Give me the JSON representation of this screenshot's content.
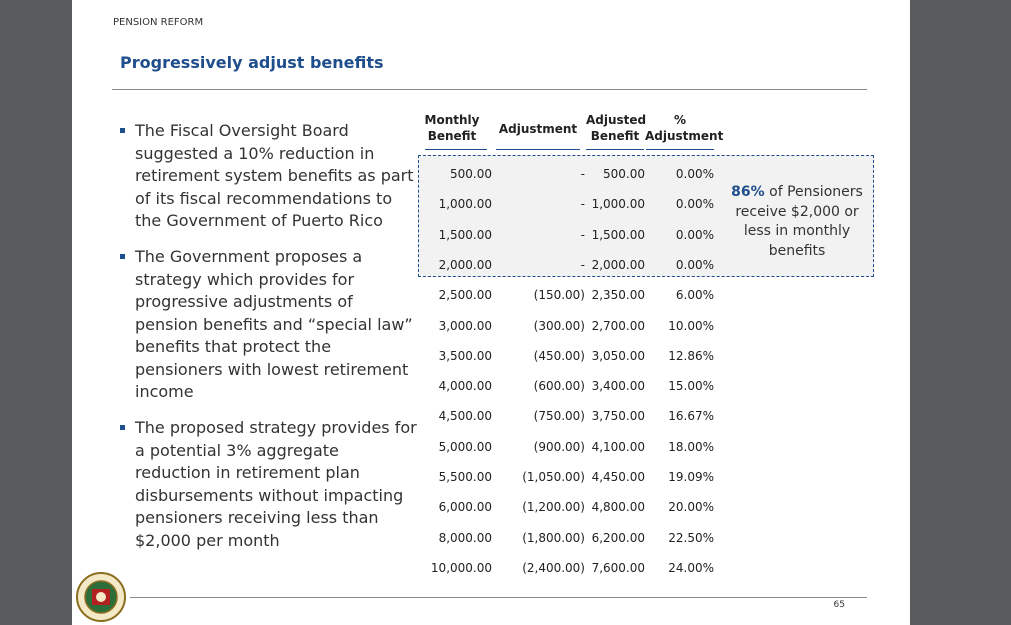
{
  "header": {
    "section": "PENSION REFORM",
    "title": "Progressively adjust benefits"
  },
  "bullets": [
    "The Fiscal Oversight Board suggested a 10% reduction in retirement system benefits as part of its fiscal recommendations to the Government of Puerto Rico",
    "The Government proposes a strategy which provides for progressive adjustments of pension benefits and “special law” benefits that protect the pensioners with lowest retirement income",
    "The proposed strategy provides for a potential 3% aggregate reduction in retirement plan disbursements without impacting pensioners receiving less than $2,000 per month"
  ],
  "table": {
    "columns": [
      "Monthly Benefit",
      "Adjustment",
      "Adjusted Benefit",
      "% Adjustment"
    ],
    "rows": [
      [
        "500.00",
        "-",
        "500.00",
        "0.00%"
      ],
      [
        "1,000.00",
        "-",
        "1,000.00",
        "0.00%"
      ],
      [
        "1,500.00",
        "-",
        "1,500.00",
        "0.00%"
      ],
      [
        "2,000.00",
        "-",
        "2,000.00",
        "0.00%"
      ],
      [
        "2,500.00",
        "(150.00)",
        "2,350.00",
        "6.00%"
      ],
      [
        "3,000.00",
        "(300.00)",
        "2,700.00",
        "10.00%"
      ],
      [
        "3,500.00",
        "(450.00)",
        "3,050.00",
        "12.86%"
      ],
      [
        "4,000.00",
        "(600.00)",
        "3,400.00",
        "15.00%"
      ],
      [
        "4,500.00",
        "(750.00)",
        "3,750.00",
        "16.67%"
      ],
      [
        "5,000.00",
        "(900.00)",
        "4,100.00",
        "18.00%"
      ],
      [
        "5,500.00",
        "(1,050.00)",
        "4,450.00",
        "19.09%"
      ],
      [
        "6,000.00",
        "(1,200.00)",
        "4,800.00",
        "20.00%"
      ],
      [
        "8,000.00",
        "(1,800.00)",
        "6,200.00",
        "22.50%"
      ],
      [
        "10,000.00",
        "(2,400.00)",
        "7,600.00",
        "24.00%"
      ]
    ]
  },
  "annotation": {
    "highlight": "86%",
    "text": "of Pensioners receive $2,000 or less in monthly benefits"
  },
  "footer": {
    "page": "65"
  }
}
